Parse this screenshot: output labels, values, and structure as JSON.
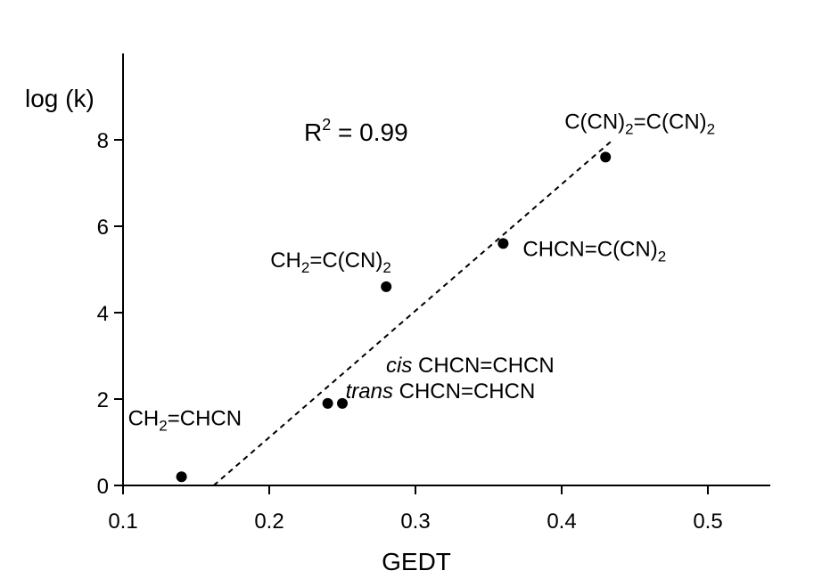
{
  "chart_data": {
    "type": "scatter",
    "title": "",
    "xlabel": "GEDT",
    "ylabel": "log (k)",
    "xlim": [
      0.1,
      0.54
    ],
    "ylim": [
      0,
      10
    ],
    "xticks": [
      0.1,
      0.2,
      0.3,
      0.4,
      0.5
    ],
    "xtick_labels": [
      "0.1",
      "0.2",
      "0.3",
      "0.4",
      "0.5"
    ],
    "yticks": [
      0,
      2,
      4,
      6,
      8
    ],
    "ytick_labels": [
      "0",
      "2",
      "4",
      "6",
      "8"
    ],
    "grid": false,
    "annotation": {
      "prefix": "R",
      "sup": "2",
      "suffix": " = 0.99"
    },
    "points": [
      {
        "x": 0.14,
        "y": 0.2,
        "label_parts": [
          {
            "t": "CH"
          },
          {
            "t": "2",
            "sub": true
          },
          {
            "t": "=CHCN"
          }
        ]
      },
      {
        "x": 0.24,
        "y": 1.9,
        "label_parts": [
          {
            "t": "trans",
            "italic": true
          },
          {
            "t": " CHCN=CHCN"
          }
        ]
      },
      {
        "x": 0.25,
        "y": 1.9,
        "label_parts": [
          {
            "t": "cis",
            "italic": true
          },
          {
            "t": " CHCN=CHCN"
          }
        ]
      },
      {
        "x": 0.28,
        "y": 4.6,
        "label_parts": [
          {
            "t": "CH"
          },
          {
            "t": "2",
            "sub": true
          },
          {
            "t": "=C(CN)"
          },
          {
            "t": "2",
            "sub": true
          }
        ]
      },
      {
        "x": 0.36,
        "y": 5.6,
        "label_parts": [
          {
            "t": "CHCN=C(CN)"
          },
          {
            "t": "2",
            "sub": true
          }
        ]
      },
      {
        "x": 0.43,
        "y": 7.6,
        "label_parts": [
          {
            "t": "C(CN)"
          },
          {
            "t": "2",
            "sub": true
          },
          {
            "t": "=C(CN)"
          },
          {
            "t": "2",
            "sub": true
          }
        ]
      }
    ],
    "fit_line": {
      "style": "dashed",
      "x": [
        0.162,
        0.435
      ],
      "y": [
        0,
        8.0
      ]
    }
  }
}
